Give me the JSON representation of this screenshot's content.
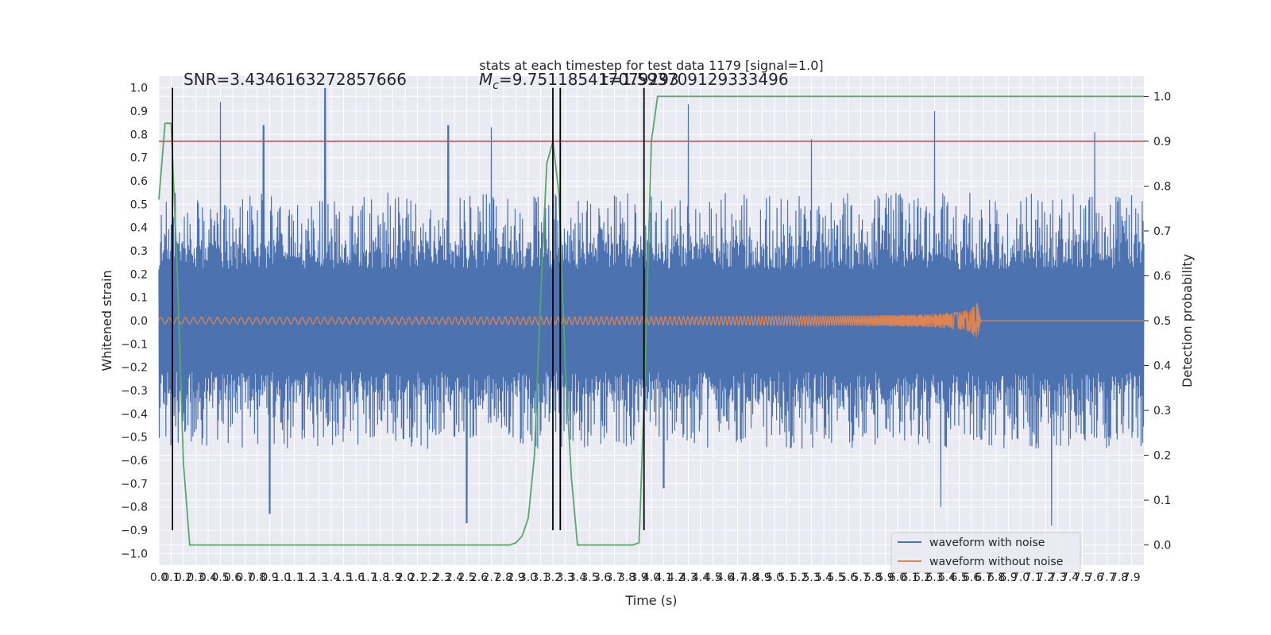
{
  "chart_data": {
    "type": "line",
    "title": "stats at each timestep for test data 1179 [signal=1.0]",
    "xlabel": "Time (s)",
    "ylabel": "Whitened strain",
    "y2label": "Detection probability",
    "xlim": [
      0.0,
      8.0
    ],
    "ylim": [
      -1.05,
      1.05
    ],
    "y2lim": [
      -0.045,
      1.045
    ],
    "x_ticks": [
      0.0,
      0.1,
      0.2,
      0.3,
      0.4,
      0.5,
      0.6,
      0.7,
      0.8,
      0.9,
      1.0,
      1.1,
      1.2,
      1.3,
      1.4,
      1.5,
      1.6,
      1.7,
      1.8,
      1.9,
      2.0,
      2.1,
      2.2,
      2.3,
      2.4,
      2.5,
      2.6,
      2.7,
      2.8,
      2.9,
      3.0,
      3.1,
      3.2,
      3.3,
      3.4,
      3.5,
      3.6,
      3.7,
      3.8,
      3.9,
      4.0,
      4.1,
      4.2,
      4.3,
      4.4,
      4.5,
      4.6,
      4.7,
      4.8,
      4.9,
      5.0,
      5.1,
      5.2,
      5.3,
      5.4,
      5.5,
      5.6,
      5.7,
      5.8,
      5.9,
      6.0,
      6.1,
      6.2,
      6.3,
      6.4,
      6.5,
      6.6,
      6.7,
      6.8,
      6.9,
      7.0,
      7.1,
      7.2,
      7.3,
      7.4,
      7.5,
      7.6,
      7.7,
      7.8,
      7.9
    ],
    "y_ticks": [
      -1.0,
      -0.9,
      -0.8,
      -0.7,
      -0.6,
      -0.5,
      -0.4,
      -0.3,
      -0.2,
      -0.1,
      0.0,
      0.1,
      0.2,
      0.3,
      0.4,
      0.5,
      0.6,
      0.7,
      0.8,
      0.9,
      1.0
    ],
    "y2_ticks": [
      0.0,
      0.1,
      0.2,
      0.3,
      0.4,
      0.5,
      0.6,
      0.7,
      0.8,
      0.9,
      1.0
    ],
    "grid": true,
    "legend_position": "lower-right",
    "series": [
      {
        "name": "waveform with noise",
        "color": "#4c72b0",
        "description_kind": "noise",
        "core_amplitude": 0.22,
        "typical_peak": 0.55,
        "max_positive_peaks": [
          [
            0.5,
            0.94
          ],
          [
            0.85,
            0.84
          ],
          [
            1.35,
            1.0
          ],
          [
            2.35,
            0.84
          ],
          [
            2.7,
            0.83
          ],
          [
            4.3,
            0.93
          ],
          [
            5.3,
            0.78
          ],
          [
            6.3,
            0.9
          ],
          [
            7.6,
            0.81
          ]
        ],
        "max_negative_peaks": [
          [
            0.9,
            -0.83
          ],
          [
            2.5,
            -0.87
          ],
          [
            7.25,
            -0.88
          ],
          [
            6.35,
            -0.8
          ],
          [
            4.1,
            -0.72
          ]
        ]
      },
      {
        "name": "waveform without noise",
        "color": "#dd8452",
        "description_kind": "chirp",
        "start_amplitude": 0.005,
        "merger_time": 6.65,
        "merger_amplitude": 0.09
      },
      {
        "name": "",
        "color": "#55a868",
        "axis": "y2",
        "x": [
          0.0,
          0.05,
          0.1,
          0.15,
          0.2,
          0.25,
          0.3,
          2.75,
          2.85,
          2.9,
          2.95,
          3.0,
          3.05,
          3.1,
          3.15,
          3.2,
          3.25,
          3.3,
          3.35,
          3.4,
          3.5,
          3.85,
          3.9,
          3.95,
          4.0,
          4.05,
          8.0
        ],
        "y": [
          0.77,
          0.94,
          0.94,
          0.6,
          0.18,
          0.0,
          0.0,
          0.0,
          0.0,
          0.005,
          0.02,
          0.06,
          0.2,
          0.55,
          0.85,
          0.9,
          0.78,
          0.4,
          0.15,
          0.0,
          0.0,
          0.0,
          0.005,
          0.4,
          0.9,
          1.0,
          1.0
        ]
      }
    ],
    "hlines": [
      {
        "axis": "y2",
        "y": 0.9,
        "color": "#c44e52"
      }
    ],
    "vlines": [
      {
        "x": 0.11,
        "color": "#000000"
      },
      {
        "x": 3.2,
        "color": "#000000"
      },
      {
        "x": 3.26,
        "color": "#000000"
      },
      {
        "x": 3.94,
        "color": "#000000"
      }
    ],
    "annotations": [
      {
        "text": "SNR=3.4346163272857666",
        "x": 0.2,
        "y": 1.02
      },
      {
        "text": "M_c=9.751185417079293",
        "x": 2.6,
        "y": 1.02
      },
      {
        "text": "t=1.593709129333496",
        "x": 3.6,
        "y": 1.02
      }
    ]
  }
}
